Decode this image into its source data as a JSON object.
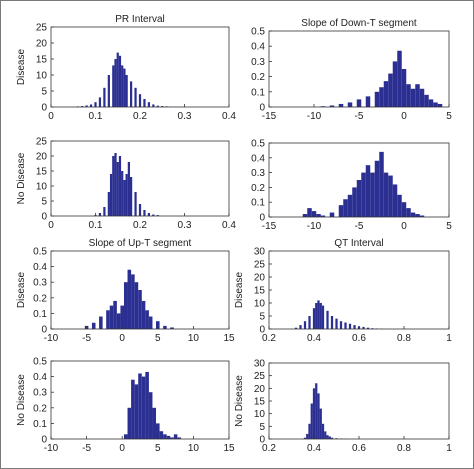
{
  "colors": {
    "bars": "#2b2f91",
    "axis": "#333333",
    "background": "#ffffff"
  },
  "chart_data": [
    {
      "type": "bar",
      "title": "PR Interval",
      "ylabel": "Disease",
      "xlim": [
        0,
        0.4
      ],
      "ylim": [
        0,
        25
      ],
      "xticks": [
        "0",
        "0.1",
        "0.2",
        "0.3",
        "0.4"
      ],
      "yticks": [
        "0",
        "5",
        "10",
        "15",
        "20",
        "25"
      ],
      "bins": {
        "x": [
          0.06,
          0.07,
          0.08,
          0.09,
          0.1,
          0.11,
          0.12,
          0.13,
          0.14,
          0.145,
          0.15,
          0.155,
          0.16,
          0.165,
          0.17,
          0.18,
          0.19,
          0.2,
          0.21,
          0.22,
          0.23,
          0.24,
          0.25,
          0.26,
          0.27,
          0.28
        ],
        "values": [
          0.2,
          0.3,
          0.5,
          0.8,
          1.5,
          3,
          6,
          10,
          13,
          15,
          17,
          16,
          13,
          12,
          10,
          8,
          6,
          4,
          2.5,
          1.5,
          0.8,
          0.4,
          0.3,
          0.2,
          0.1,
          0.1
        ]
      }
    },
    {
      "type": "bar",
      "title": "Slope of Down-T segment",
      "ylabel": "",
      "xlim": [
        -15,
        5
      ],
      "ylim": [
        0,
        0.5
      ],
      "xticks": [
        "-15",
        "-10",
        "-5",
        "0",
        "5"
      ],
      "yticks": [
        "0",
        "0.1",
        "0.2",
        "0.3",
        "0.4",
        "0.5"
      ],
      "bins": {
        "x": [
          -9,
          -8,
          -7,
          -6,
          -5,
          -4,
          -3,
          -2.5,
          -2,
          -1.5,
          -1,
          -0.5,
          0,
          0.5,
          1,
          1.5,
          2,
          2.5,
          3,
          3.5,
          4
        ],
        "values": [
          0.005,
          0.01,
          0.02,
          0.03,
          0.05,
          0.07,
          0.1,
          0.13,
          0.17,
          0.22,
          0.3,
          0.37,
          0.25,
          0.15,
          0.12,
          0.15,
          0.12,
          0.08,
          0.05,
          0.03,
          0.02
        ]
      }
    },
    {
      "type": "bar",
      "title": "",
      "ylabel": "No Disease",
      "xlim": [
        0,
        0.4
      ],
      "ylim": [
        0,
        25
      ],
      "xticks": [
        "0",
        "0.1",
        "0.2",
        "0.3",
        "0.4"
      ],
      "yticks": [
        "0",
        "5",
        "10",
        "15",
        "20",
        "25"
      ],
      "bins": {
        "x": [
          0.1,
          0.11,
          0.12,
          0.13,
          0.135,
          0.14,
          0.145,
          0.15,
          0.155,
          0.16,
          0.165,
          0.17,
          0.175,
          0.18,
          0.19,
          0.2,
          0.21,
          0.22,
          0.23,
          0.24
        ],
        "values": [
          0.3,
          1,
          3,
          8,
          14,
          20,
          21,
          18,
          20,
          15,
          12,
          14,
          18,
          13,
          8,
          4,
          2,
          1,
          0.5,
          0.3
        ]
      }
    },
    {
      "type": "bar",
      "title": "",
      "ylabel": "",
      "xlim": [
        -15,
        5
      ],
      "ylim": [
        0,
        0.5
      ],
      "xticks": [
        "-15",
        "-10",
        "-5",
        "0",
        "5"
      ],
      "yticks": [
        "0",
        "0.1",
        "0.2",
        "0.3",
        "0.4",
        "0.5"
      ],
      "bins": {
        "x": [
          -11,
          -10.5,
          -10,
          -9.5,
          -9,
          -8,
          -7,
          -6.5,
          -6,
          -5.5,
          -5,
          -4.5,
          -4,
          -3.5,
          -3,
          -2.5,
          -2,
          -1.5,
          -1,
          -0.5,
          0,
          0.5,
          1,
          1.5,
          2
        ],
        "values": [
          0.02,
          0.06,
          0.04,
          0.02,
          0.01,
          0.03,
          0.08,
          0.12,
          0.15,
          0.2,
          0.25,
          0.3,
          0.35,
          0.3,
          0.38,
          0.44,
          0.3,
          0.28,
          0.22,
          0.15,
          0.1,
          0.06,
          0.03,
          0.02,
          0.01
        ]
      }
    },
    {
      "type": "bar",
      "title": "Slope of Up-T segment",
      "ylabel": "Disease",
      "xlim": [
        -10,
        15
      ],
      "ylim": [
        0,
        0.5
      ],
      "xticks": [
        "-10",
        "-5",
        "0",
        "5",
        "10",
        "15"
      ],
      "yticks": [
        "0",
        "0.1",
        "0.2",
        "0.3",
        "0.4",
        "0.5"
      ],
      "bins": {
        "x": [
          -5,
          -4,
          -3,
          -2,
          -1.5,
          -1,
          -0.5,
          0,
          0.5,
          1,
          1.5,
          2,
          2.5,
          3,
          3.5,
          4,
          5,
          6,
          7
        ],
        "values": [
          0.02,
          0.04,
          0.08,
          0.12,
          0.15,
          0.18,
          0.1,
          0.15,
          0.3,
          0.38,
          0.35,
          0.3,
          0.25,
          0.18,
          0.12,
          0.08,
          0.05,
          0.02,
          0.01
        ]
      }
    },
    {
      "type": "bar",
      "title": "QT Interval",
      "ylabel": "Disease",
      "xlim": [
        0.2,
        1
      ],
      "ylim": [
        0,
        30
      ],
      "xticks": [
        "0.2",
        "0.4",
        "0.6",
        "0.8",
        "1"
      ],
      "yticks": [
        "0",
        "5",
        "10",
        "15",
        "20",
        "25",
        "30"
      ],
      "bins": {
        "x": [
          0.32,
          0.34,
          0.36,
          0.38,
          0.4,
          0.41,
          0.42,
          0.43,
          0.44,
          0.46,
          0.48,
          0.5,
          0.52,
          0.54,
          0.56,
          0.58,
          0.6,
          0.62,
          0.64,
          0.66,
          0.68,
          0.7
        ],
        "values": [
          0.5,
          1.5,
          3,
          5,
          8,
          10,
          11,
          10,
          9,
          7,
          5,
          4,
          3,
          2.5,
          2,
          1.5,
          1,
          0.8,
          0.5,
          0.3,
          0.2,
          0.1
        ]
      }
    },
    {
      "type": "bar",
      "title": "",
      "ylabel": "No Disease",
      "xlim": [
        -10,
        15
      ],
      "ylim": [
        0,
        0.5
      ],
      "xticks": [
        "-10",
        "-5",
        "0",
        "5",
        "10",
        "15"
      ],
      "yticks": [
        "0",
        "0.1",
        "0.2",
        "0.3",
        "0.4",
        "0.5"
      ],
      "bins": {
        "x": [
          0.5,
          1,
          1.5,
          2,
          2.5,
          3,
          3.5,
          4,
          4.5,
          5,
          5.5,
          6,
          6.5,
          7,
          7.5,
          8
        ],
        "values": [
          0.03,
          0.2,
          0.38,
          0.35,
          0.42,
          0.4,
          0.43,
          0.3,
          0.2,
          0.1,
          0.05,
          0.03,
          0.02,
          0.01,
          0.03,
          0.01
        ]
      }
    },
    {
      "type": "bar",
      "title": "",
      "ylabel": "No Disease",
      "xlim": [
        0.2,
        1
      ],
      "ylim": [
        0,
        30
      ],
      "xticks": [
        "0.2",
        "0.4",
        "0.6",
        "0.8",
        "1"
      ],
      "yticks": [
        "0",
        "5",
        "10",
        "15",
        "20",
        "25",
        "30"
      ],
      "bins": {
        "x": [
          0.36,
          0.37,
          0.38,
          0.39,
          0.4,
          0.41,
          0.42,
          0.43,
          0.44,
          0.45,
          0.46,
          0.47,
          0.48,
          0.5,
          0.52,
          0.54
        ],
        "values": [
          0.5,
          2,
          6,
          14,
          20,
          22,
          18,
          12,
          6,
          3,
          1.5,
          1,
          0.5,
          0.3,
          0.2,
          0.1
        ]
      }
    }
  ]
}
